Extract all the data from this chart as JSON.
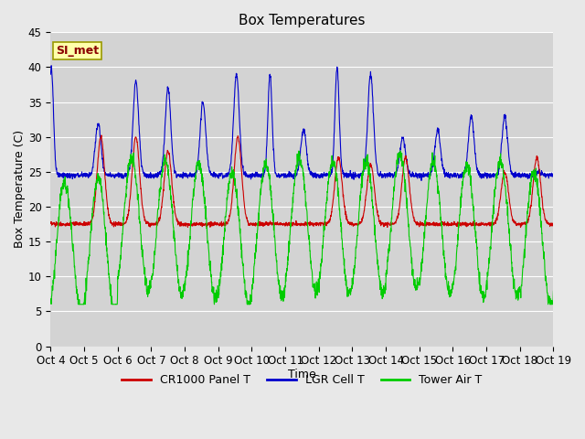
{
  "title": "Box Temperatures",
  "xlabel": "Time",
  "ylabel": "Box Temperature (C)",
  "ylim": [
    0,
    45
  ],
  "xlim": [
    0,
    360
  ],
  "fig_bg_color": "#e8e8e8",
  "plot_bg_color": "#d3d3d3",
  "grid_color": "#ffffff",
  "annotation_text": "SI_met",
  "annotation_color": "#8b0000",
  "annotation_bg": "#ffffaa",
  "annotation_border": "#999900",
  "legend_labels": [
    "CR1000 Panel T",
    "LGR Cell T",
    "Tower Air T"
  ],
  "legend_colors": [
    "#cc0000",
    "#0000cc",
    "#00cc00"
  ],
  "tick_labels": [
    "Oct 4",
    "Oct 5",
    "Oct 6",
    "Oct 7",
    "Oct 8",
    "Oct 9",
    "Oct 10",
    "Oct 11",
    "Oct 12",
    "Oct 13",
    "Oct 14",
    "Oct 15",
    "Oct 16",
    "Oct 17",
    "Oct 18",
    "Oct 19"
  ],
  "tick_positions": [
    0,
    24,
    48,
    72,
    96,
    120,
    144,
    168,
    192,
    216,
    240,
    264,
    288,
    312,
    336,
    360
  ],
  "yticks": [
    0,
    5,
    10,
    15,
    20,
    25,
    30,
    35,
    40,
    45
  ]
}
